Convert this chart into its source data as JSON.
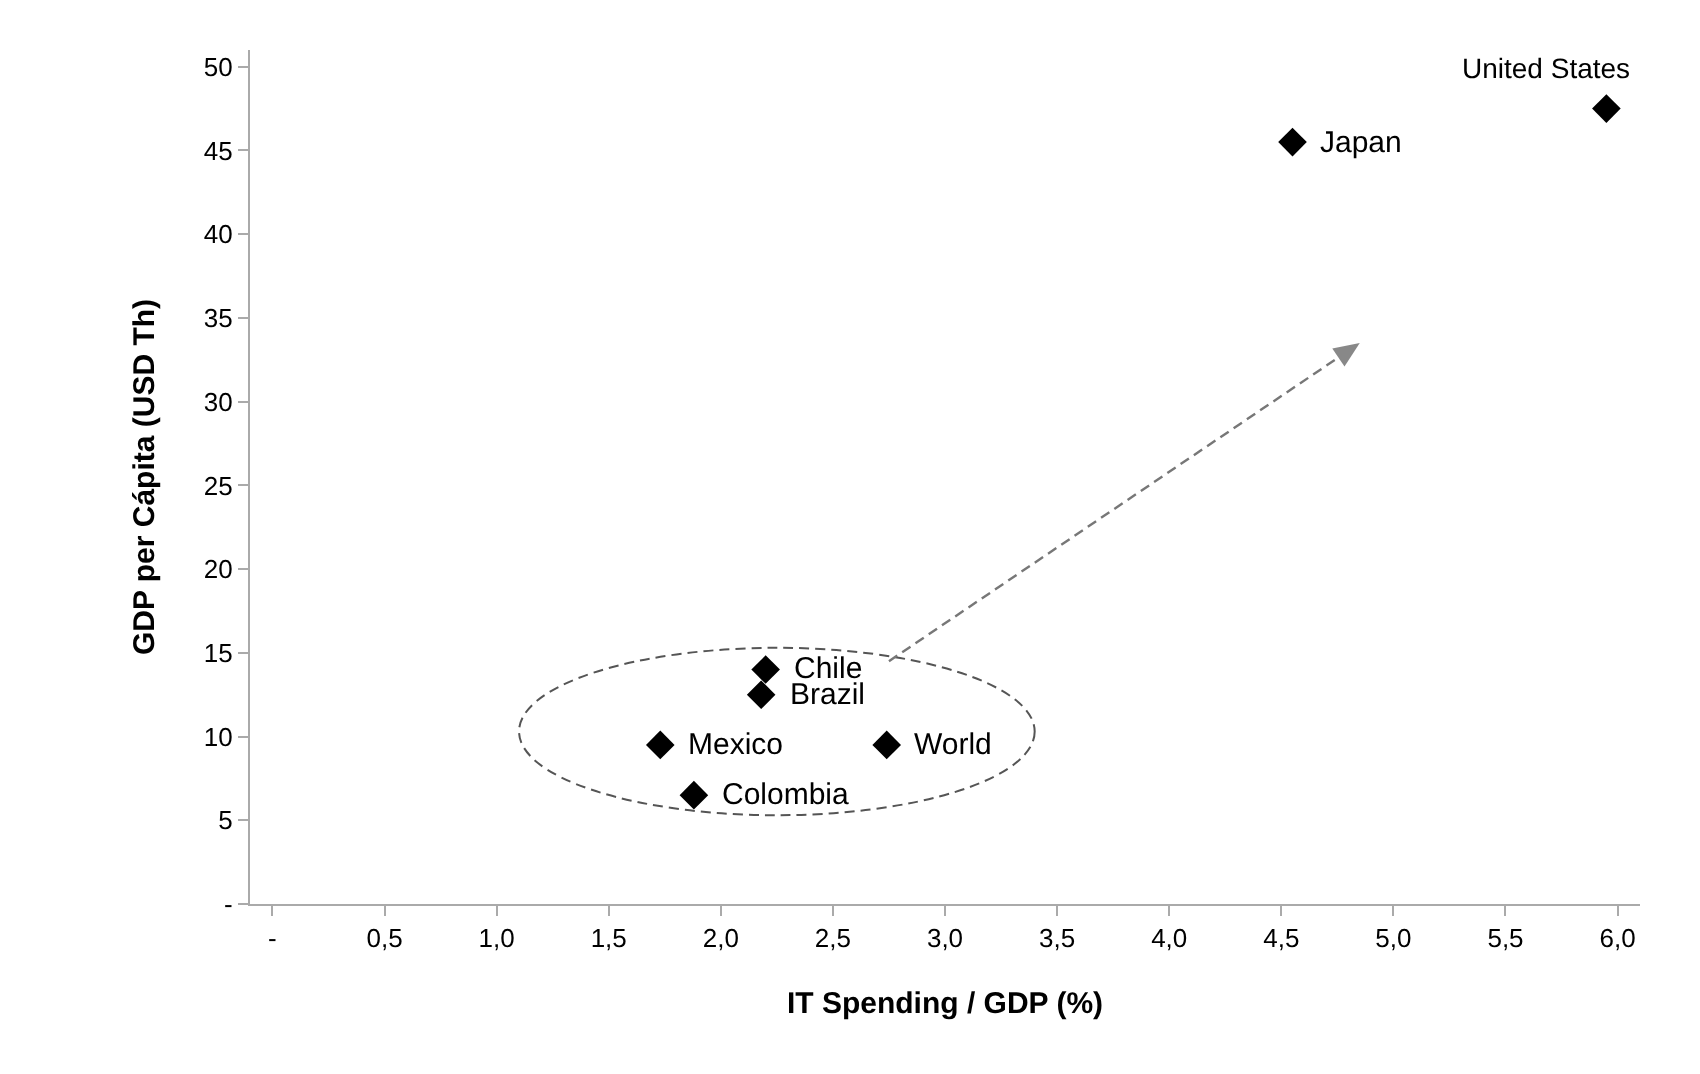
{
  "chart_data": {
    "type": "scatter",
    "xlabel": "IT Spending / GDP (%)",
    "ylabel": "GDP per Cápita (USD Th)",
    "x": [
      5.95,
      4.55,
      2.2,
      2.18,
      1.73,
      2.74,
      1.88
    ],
    "values": [
      47.5,
      45.5,
      14,
      12.5,
      9.5,
      9.5,
      6.5
    ],
    "color": "#000000",
    "marker": "diamond",
    "xlim": [
      -0.1,
      6.1
    ],
    "ylim": [
      0,
      51
    ],
    "xticks": [
      {
        "value": 0,
        "label": "-"
      },
      {
        "value": 0.5,
        "label": "0,5"
      },
      {
        "value": 1,
        "label": "1,0"
      },
      {
        "value": 1.5,
        "label": "1,5"
      },
      {
        "value": 2,
        "label": "2,0"
      },
      {
        "value": 2.5,
        "label": "2,5"
      },
      {
        "value": 3,
        "label": "3,0"
      },
      {
        "value": 3.5,
        "label": "3,5"
      },
      {
        "value": 4,
        "label": "4,0"
      },
      {
        "value": 4.5,
        "label": "4,5"
      },
      {
        "value": 5,
        "label": "5,0"
      },
      {
        "value": 5.5,
        "label": "5,5"
      },
      {
        "value": 6,
        "label": "6,0"
      }
    ],
    "yticks": [
      {
        "value": 0,
        "label": "-"
      },
      5,
      10,
      15,
      20,
      25,
      30,
      35,
      40,
      45,
      50
    ],
    "annotations": [
      {
        "text": "United States",
        "x": 5.95,
        "y": 47.5
      },
      {
        "text": "Japan",
        "x": 4.55,
        "y": 45.5
      },
      {
        "text": "Chile",
        "x": 2.2,
        "y": 14
      },
      {
        "text": "Brazil",
        "x": 2.18,
        "y": 12.5
      },
      {
        "text": "Mexico",
        "x": 1.73,
        "y": 9.5
      },
      {
        "text": "World",
        "x": 2.74,
        "y": 9.5
      },
      {
        "text": "Colombia",
        "x": 1.88,
        "y": 6.5
      }
    ]
  }
}
